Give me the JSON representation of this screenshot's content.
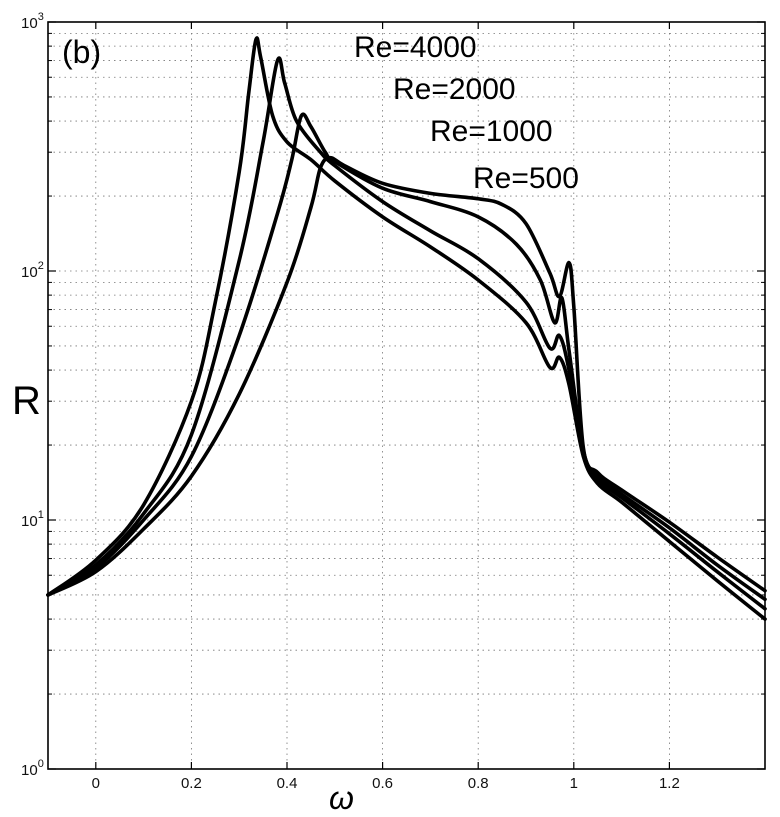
{
  "chart_data": {
    "type": "line",
    "panel_label": "(b)",
    "xlabel": "ω",
    "ylabel": "R",
    "xlim": [
      -0.1,
      1.4
    ],
    "ylim": [
      1,
      1000
    ],
    "yscale": "log",
    "grid": true,
    "x_ticks": [
      "0",
      "0.2",
      "0.4",
      "0.6",
      "0.8",
      "1",
      "1.2"
    ],
    "y_ticks": [
      {
        "base": "10",
        "exp": "0",
        "value": 1
      },
      {
        "base": "10",
        "exp": "1",
        "value": 10
      },
      {
        "base": "10",
        "exp": "2",
        "value": 100
      },
      {
        "base": "10",
        "exp": "3",
        "value": 1000
      }
    ],
    "series": [
      {
        "name": "Re=4000",
        "points": [
          [
            -0.1,
            5.0
          ],
          [
            0.0,
            6.9
          ],
          [
            0.1,
            11.5
          ],
          [
            0.2,
            30
          ],
          [
            0.25,
            75
          ],
          [
            0.3,
            250
          ],
          [
            0.32,
            520
          ],
          [
            0.335,
            850
          ],
          [
            0.345,
            720
          ],
          [
            0.37,
            420
          ],
          [
            0.4,
            330
          ],
          [
            0.45,
            280
          ],
          [
            0.5,
            230
          ],
          [
            0.6,
            165
          ],
          [
            0.7,
            125
          ],
          [
            0.8,
            92
          ],
          [
            0.9,
            62
          ],
          [
            0.95,
            41
          ],
          [
            0.97,
            45
          ],
          [
            0.99,
            35
          ],
          [
            1.02,
            18
          ],
          [
            1.05,
            14
          ],
          [
            1.1,
            11.8
          ],
          [
            1.2,
            8.2
          ],
          [
            1.3,
            5.7
          ],
          [
            1.4,
            4.0
          ]
        ]
      },
      {
        "name": "Re=2000",
        "points": [
          [
            -0.1,
            5.0
          ],
          [
            0.0,
            6.6
          ],
          [
            0.1,
            10.6
          ],
          [
            0.2,
            22
          ],
          [
            0.3,
            110
          ],
          [
            0.35,
            330
          ],
          [
            0.38,
            700
          ],
          [
            0.395,
            570
          ],
          [
            0.42,
            400
          ],
          [
            0.47,
            300
          ],
          [
            0.5,
            265
          ],
          [
            0.6,
            190
          ],
          [
            0.7,
            145
          ],
          [
            0.8,
            112
          ],
          [
            0.9,
            75
          ],
          [
            0.95,
            49
          ],
          [
            0.97,
            55
          ],
          [
            0.99,
            40
          ],
          [
            1.02,
            18.5
          ],
          [
            1.05,
            14.5
          ],
          [
            1.1,
            12.3
          ],
          [
            1.2,
            8.8
          ],
          [
            1.3,
            6.2
          ],
          [
            1.4,
            4.4
          ]
        ]
      },
      {
        "name": "Re=1000",
        "points": [
          [
            -0.1,
            5.0
          ],
          [
            0.0,
            6.4
          ],
          [
            0.1,
            10.0
          ],
          [
            0.2,
            18
          ],
          [
            0.3,
            55
          ],
          [
            0.38,
            170
          ],
          [
            0.41,
            280
          ],
          [
            0.43,
            420
          ],
          [
            0.45,
            380
          ],
          [
            0.48,
            300
          ],
          [
            0.5,
            275
          ],
          [
            0.6,
            215
          ],
          [
            0.7,
            190
          ],
          [
            0.8,
            165
          ],
          [
            0.88,
            128
          ],
          [
            0.93,
            92
          ],
          [
            0.96,
            62
          ],
          [
            0.975,
            78
          ],
          [
            0.99,
            48
          ],
          [
            1.02,
            19
          ],
          [
            1.05,
            15
          ],
          [
            1.1,
            12.7
          ],
          [
            1.2,
            9.3
          ],
          [
            1.3,
            6.6
          ],
          [
            1.4,
            4.8
          ]
        ]
      },
      {
        "name": "Re=500",
        "points": [
          [
            -0.1,
            5.0
          ],
          [
            0.0,
            6.2
          ],
          [
            0.1,
            9.2
          ],
          [
            0.2,
            15
          ],
          [
            0.3,
            32
          ],
          [
            0.4,
            90
          ],
          [
            0.45,
            180
          ],
          [
            0.47,
            260
          ],
          [
            0.49,
            285
          ],
          [
            0.52,
            265
          ],
          [
            0.6,
            225
          ],
          [
            0.7,
            205
          ],
          [
            0.8,
            195
          ],
          [
            0.85,
            185
          ],
          [
            0.9,
            155
          ],
          [
            0.95,
            98
          ],
          [
            0.97,
            79
          ],
          [
            0.99,
            108
          ],
          [
            1.0,
            72
          ],
          [
            1.02,
            19.5
          ],
          [
            1.05,
            15.5
          ],
          [
            1.1,
            13.2
          ],
          [
            1.2,
            9.8
          ],
          [
            1.3,
            7.1
          ],
          [
            1.4,
            5.2
          ]
        ]
      }
    ]
  }
}
